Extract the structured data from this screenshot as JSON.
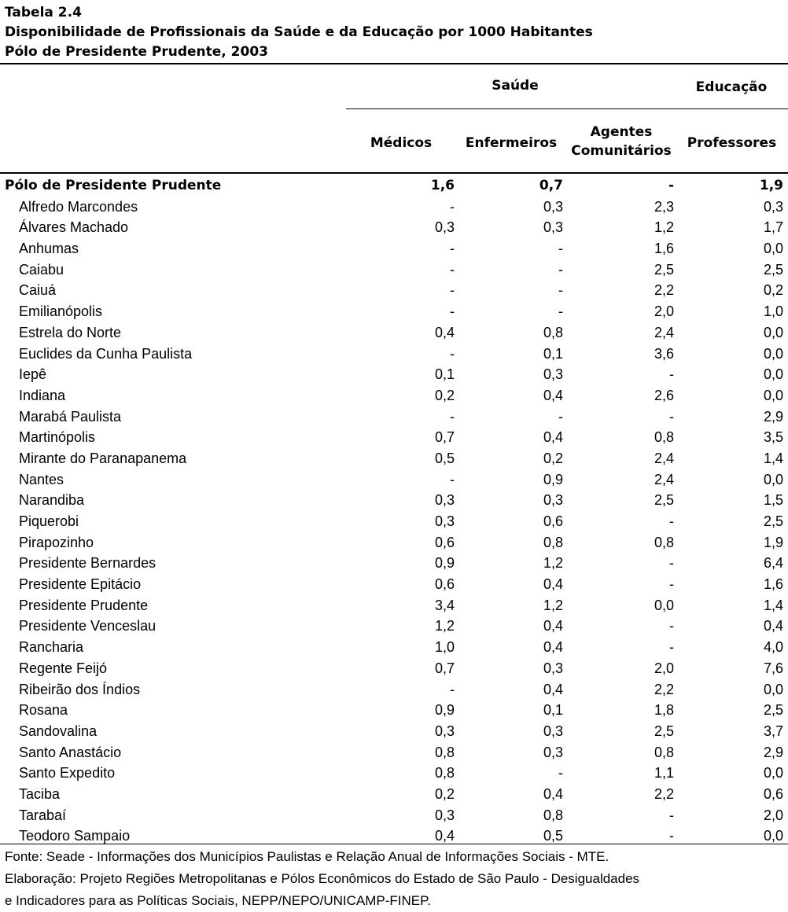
{
  "title": {
    "line1": "Tabela 2.4",
    "line2": "Disponibilidade de Profissionais da Saúde e da Educação por 1000 Habitantes",
    "line3": "Pólo de Presidente Prudente, 2003"
  },
  "header": {
    "group_saude": "Saúde",
    "group_educacao": "Educação",
    "col_medicos": "Médicos",
    "col_enfermeiros": "Enfermeiros",
    "col_agentes_line1": "Agentes",
    "col_agentes_line2": "Comunitários",
    "col_professores": "Professores"
  },
  "total": {
    "name": "Pólo de Presidente Prudente",
    "v": [
      "1,6",
      "0,7",
      "-",
      "1,9"
    ]
  },
  "rows": [
    {
      "name": "Alfredo Marcondes",
      "v": [
        "-",
        "0,3",
        "2,3",
        "0,3"
      ]
    },
    {
      "name": "Álvares Machado",
      "v": [
        "0,3",
        "0,3",
        "1,2",
        "1,7"
      ]
    },
    {
      "name": "Anhumas",
      "v": [
        "-",
        "-",
        "1,6",
        "0,0"
      ]
    },
    {
      "name": "Caiabu",
      "v": [
        "-",
        "-",
        "2,5",
        "2,5"
      ]
    },
    {
      "name": "Caiuá",
      "v": [
        "-",
        "-",
        "2,2",
        "0,2"
      ]
    },
    {
      "name": "Emilianópolis",
      "v": [
        "-",
        "-",
        "2,0",
        "1,0"
      ]
    },
    {
      "name": "Estrela do Norte",
      "v": [
        "0,4",
        "0,8",
        "2,4",
        "0,0"
      ]
    },
    {
      "name": "Euclides da Cunha Paulista",
      "v": [
        "-",
        "0,1",
        "3,6",
        "0,0"
      ]
    },
    {
      "name": "Iepê",
      "v": [
        "0,1",
        "0,3",
        "-",
        "0,0"
      ]
    },
    {
      "name": "Indiana",
      "v": [
        "0,2",
        "0,4",
        "2,6",
        "0,0"
      ]
    },
    {
      "name": "Marabá Paulista",
      "v": [
        "-",
        "-",
        "-",
        "2,9"
      ]
    },
    {
      "name": "Martinópolis",
      "v": [
        "0,7",
        "0,4",
        "0,8",
        "3,5"
      ]
    },
    {
      "name": "Mirante do Paranapanema",
      "v": [
        "0,5",
        "0,2",
        "2,4",
        "1,4"
      ]
    },
    {
      "name": "Nantes",
      "v": [
        "-",
        "0,9",
        "2,4",
        "0,0"
      ]
    },
    {
      "name": "Narandiba",
      "v": [
        "0,3",
        "0,3",
        "2,5",
        "1,5"
      ]
    },
    {
      "name": "Piquerobi",
      "v": [
        "0,3",
        "0,6",
        "-",
        "2,5"
      ]
    },
    {
      "name": "Pirapozinho",
      "v": [
        "0,6",
        "0,8",
        "0,8",
        "1,9"
      ]
    },
    {
      "name": "Presidente Bernardes",
      "v": [
        "0,9",
        "1,2",
        "-",
        "6,4"
      ]
    },
    {
      "name": "Presidente Epitácio",
      "v": [
        "0,6",
        "0,4",
        "-",
        "1,6"
      ]
    },
    {
      "name": "Presidente Prudente",
      "v": [
        "3,4",
        "1,2",
        "0,0",
        "1,4"
      ]
    },
    {
      "name": "Presidente Venceslau",
      "v": [
        "1,2",
        "0,4",
        "-",
        "0,4"
      ]
    },
    {
      "name": "Rancharia",
      "v": [
        "1,0",
        "0,4",
        "-",
        "4,0"
      ]
    },
    {
      "name": "Regente Feijó",
      "v": [
        "0,7",
        "0,3",
        "2,0",
        "7,6"
      ]
    },
    {
      "name": "Ribeirão dos Índios",
      "v": [
        "-",
        "0,4",
        "2,2",
        "0,0"
      ]
    },
    {
      "name": "Rosana",
      "v": [
        "0,9",
        "0,1",
        "1,8",
        "2,5"
      ]
    },
    {
      "name": "Sandovalina",
      "v": [
        "0,3",
        "0,3",
        "2,5",
        "3,7"
      ]
    },
    {
      "name": "Santo Anastácio",
      "v": [
        "0,8",
        "0,3",
        "0,8",
        "2,9"
      ]
    },
    {
      "name": "Santo Expedito",
      "v": [
        "0,8",
        "-",
        "1,1",
        "0,0"
      ]
    },
    {
      "name": "Taciba",
      "v": [
        "0,2",
        "0,4",
        "2,2",
        "0,6"
      ]
    },
    {
      "name": "Tarabaí",
      "v": [
        "0,3",
        "0,8",
        "-",
        "2,0"
      ]
    },
    {
      "name": "Teodoro Sampaio",
      "v": [
        "0,4",
        "0,5",
        "-",
        "0,0"
      ]
    }
  ],
  "footnote": {
    "line1": "Fonte: Seade - Informações dos Municípios Paulistas e Relação Anual de Informações Sociais - MTE.",
    "line2": "Elaboração: Projeto Regiões Metropolitanas e Pólos Econômicos do Estado de São Paulo - Desigualdades",
    "line3": "e Indicadores para as Políticas Sociais, NEPP/NEPO/UNICAMP-FINEP."
  }
}
